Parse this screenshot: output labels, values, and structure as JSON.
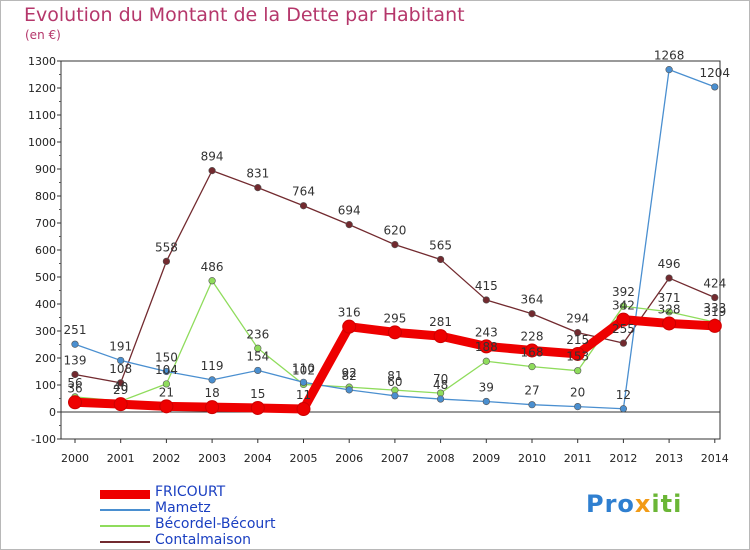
{
  "header": {
    "title": "Evolution du Montant de la Dette par Habitant",
    "unit": "(en €)"
  },
  "logo": {
    "text": "Proxiti"
  },
  "colors": {
    "FRICOURT": "#ee0000",
    "Mametz": "#4a8fd0",
    "Bécordel-Bécourt": "#8fdc5c",
    "Contalmaison": "#722a2f"
  },
  "chart_data": {
    "type": "line",
    "x": [
      "2000",
      "2001",
      "2002",
      "2003",
      "2004",
      "2005",
      "2006",
      "2007",
      "2008",
      "2009",
      "2010",
      "2011",
      "2012",
      "2013",
      "2014"
    ],
    "ylim": [
      -100,
      1300
    ],
    "yticks": [
      -100,
      0,
      100,
      200,
      300,
      400,
      500,
      600,
      700,
      800,
      900,
      1000,
      1100,
      1200,
      1300
    ],
    "grid": false,
    "legend_position": "bottom-left",
    "series": [
      {
        "name": "Contalmaison",
        "values": [
          139,
          108,
          558,
          894,
          831,
          764,
          694,
          620,
          565,
          415,
          364,
          294,
          255,
          496,
          424
        ]
      },
      {
        "name": "Bécordel-Bécourt",
        "values": [
          56,
          40,
          104,
          486,
          236,
          102,
          92,
          81,
          70,
          188,
          168,
          153,
          392,
          371,
          333
        ]
      },
      {
        "name": "Mametz",
        "values": [
          251,
          191,
          150,
          119,
          154,
          110,
          82,
          60,
          48,
          39,
          27,
          20,
          12,
          1268,
          1204
        ]
      },
      {
        "name": "FRICOURT",
        "values": [
          36,
          29,
          21,
          18,
          15,
          11,
          316,
          295,
          281,
          243,
          228,
          215,
          342,
          328,
          319
        ]
      }
    ]
  }
}
